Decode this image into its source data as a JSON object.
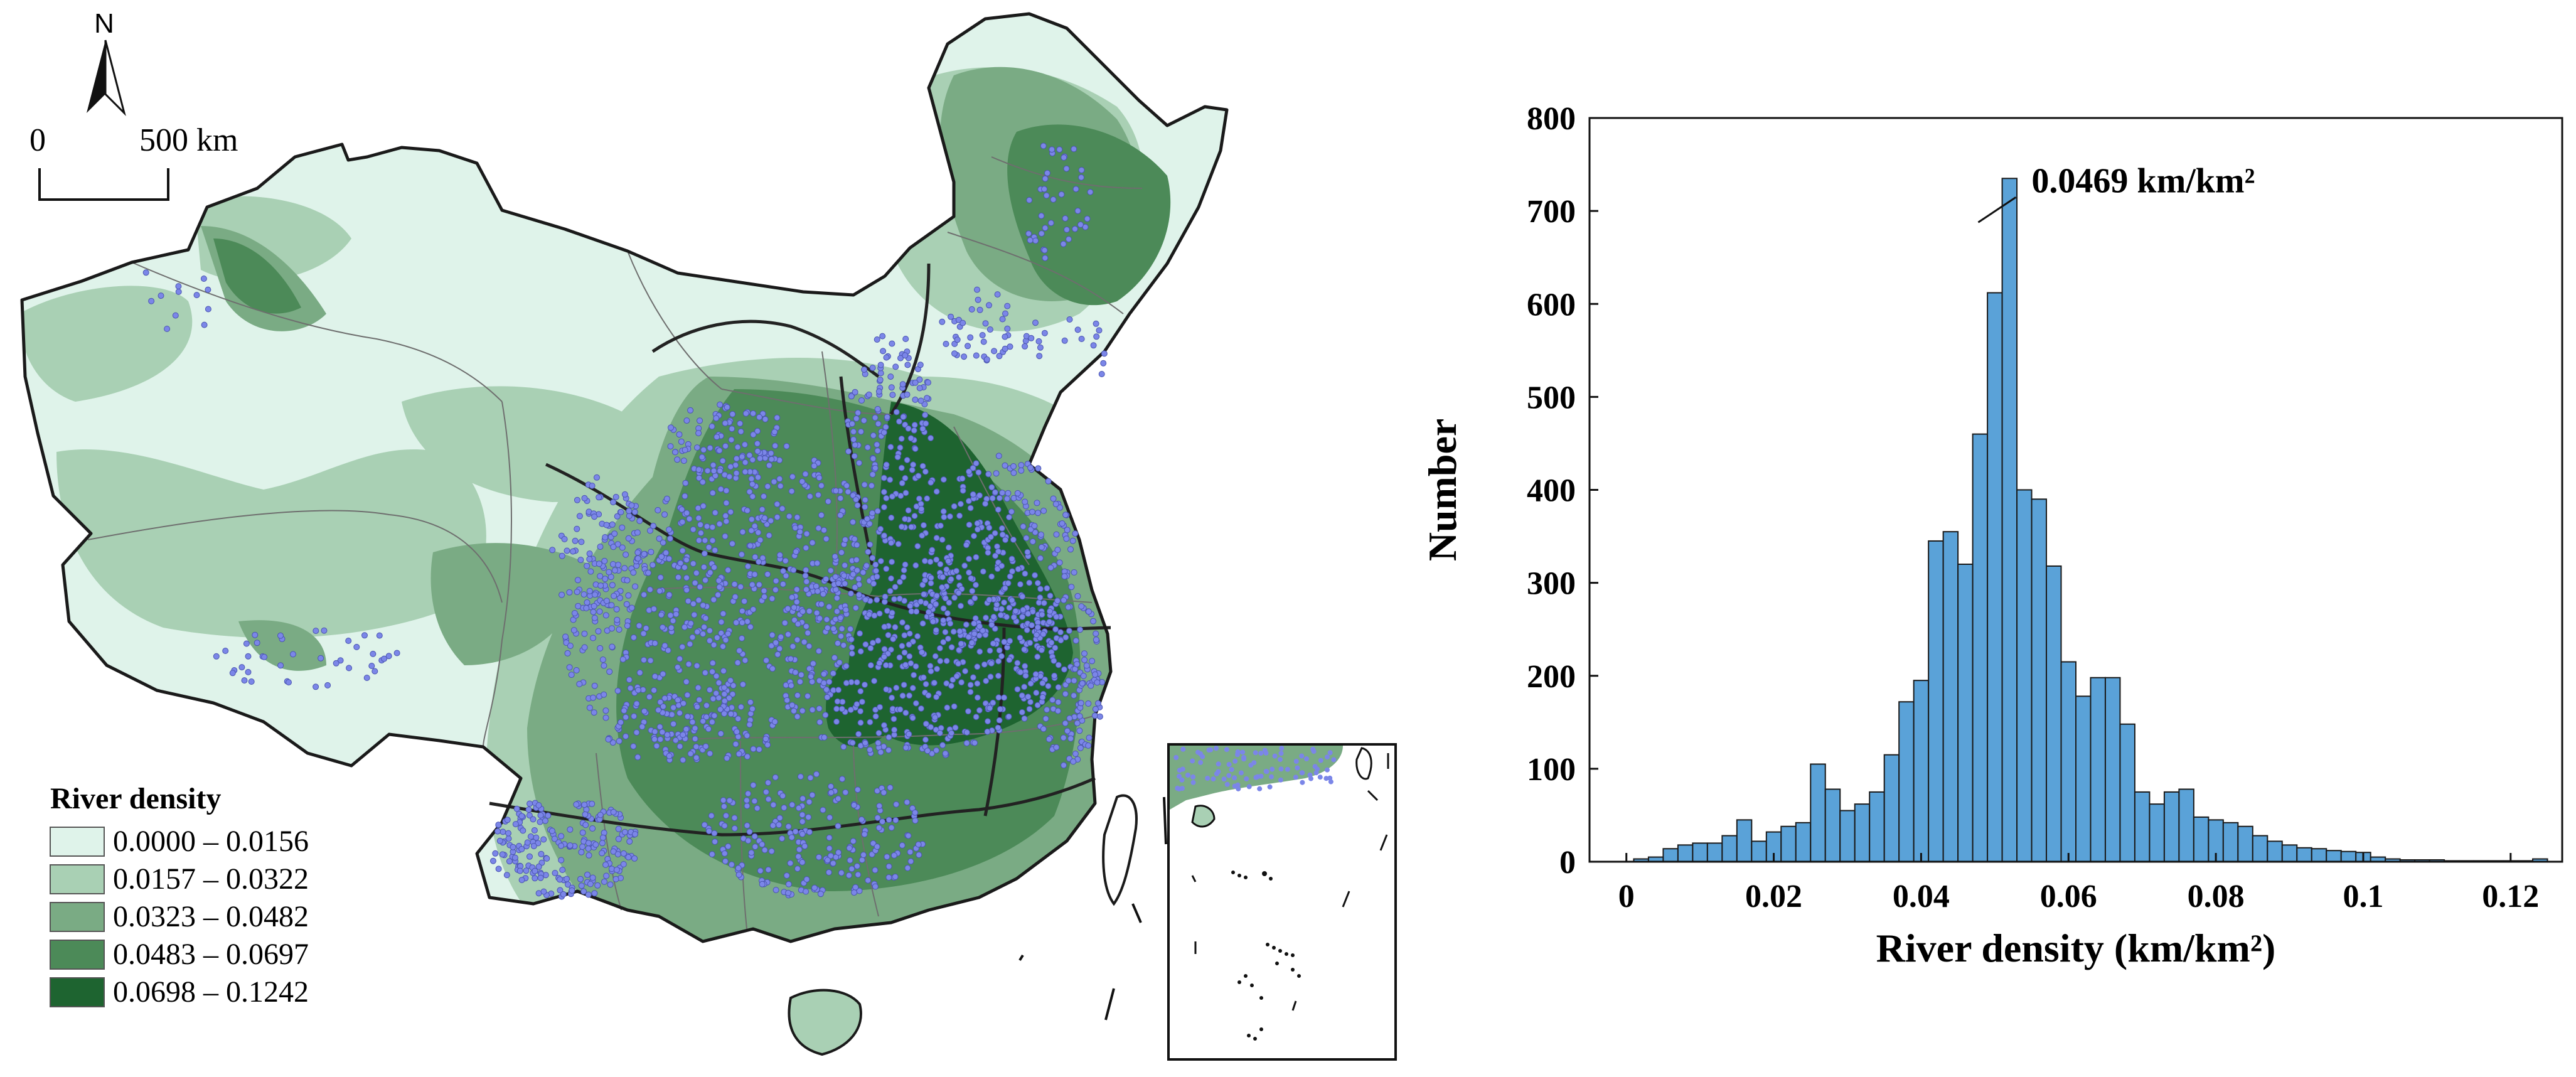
{
  "map": {
    "north_label": "N",
    "scale_bar": {
      "start_label": "0",
      "end_label": "500 km"
    },
    "legend": {
      "title": "River density",
      "classes": [
        {
          "label": "0.0000 – 0.0156",
          "color": "#dff3ea"
        },
        {
          "label": "0.0157 – 0.0322",
          "color": "#a9d0b4"
        },
        {
          "label": "0.0323 – 0.0482",
          "color": "#7aab84"
        },
        {
          "label": "0.0483 – 0.0697",
          "color": "#4c8a58"
        },
        {
          "label": "0.0698 – 0.1242",
          "color": "#1e6430"
        }
      ]
    },
    "point_color": "#7b86e8"
  },
  "chart_data": {
    "type": "bar",
    "bin_width": 0.002,
    "bin_start": 0.001,
    "values": [
      3,
      5,
      14,
      18,
      20,
      20,
      28,
      45,
      22,
      32,
      38,
      42,
      105,
      78,
      55,
      62,
      75,
      115,
      172,
      195,
      345,
      355,
      320,
      460,
      612,
      735,
      400,
      390,
      318,
      215,
      178,
      198,
      198,
      148,
      75,
      62,
      75,
      78,
      48,
      45,
      42,
      38,
      28,
      22,
      18,
      15,
      14,
      12,
      11,
      10,
      5,
      3,
      2,
      2,
      2,
      1,
      1,
      1,
      1,
      1,
      1,
      3
    ],
    "xlabel": "River density (km/km²)",
    "ylabel": "Number",
    "xlim": [
      -0.005,
      0.127
    ],
    "ylim": [
      0,
      800
    ],
    "xticks": [
      0,
      0.02,
      0.04,
      0.06,
      0.08,
      0.1,
      0.12
    ],
    "xtick_labels": [
      "0",
      "0.02",
      "0.04",
      "0.06",
      "0.08",
      "0.1",
      "0.12"
    ],
    "yticks": [
      0,
      100,
      200,
      300,
      400,
      500,
      600,
      700,
      800
    ],
    "ytick_labels": [
      "0",
      "100",
      "200",
      "300",
      "400",
      "500",
      "600",
      "700",
      "800"
    ],
    "bar_color": "#5aa2d8",
    "annotation": {
      "text": "0.0469 km/km²",
      "x": 0.0469,
      "y": 735
    },
    "grid": false
  }
}
